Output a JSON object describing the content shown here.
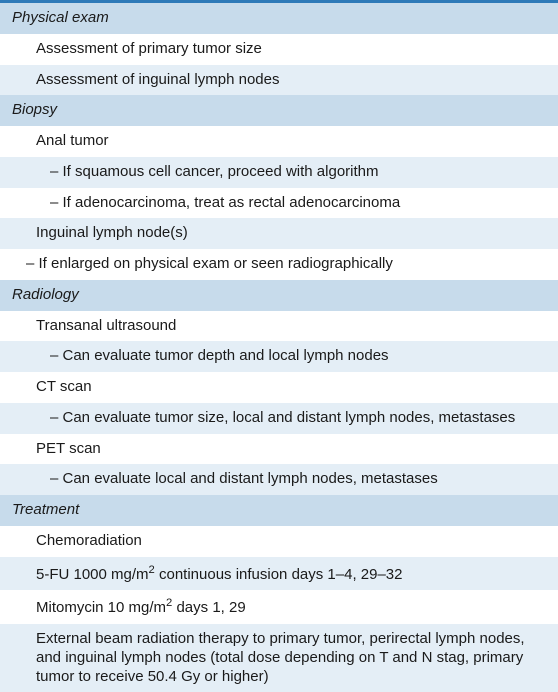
{
  "colors": {
    "header_bg": "#c7dbeb",
    "alt_bg": "#e4eef6",
    "white_bg": "#ffffff",
    "text": "#1a1a1a",
    "top_border": "#2e7ab8"
  },
  "fontsize": 15,
  "lineheight": 1.25,
  "sections": {
    "physical_exam": {
      "title": "Physical exam",
      "items": [
        "Assessment of primary tumor size",
        "Assessment of inguinal lymph nodes"
      ]
    },
    "biopsy": {
      "title": "Biopsy",
      "anal_tumor": "Anal tumor",
      "anal_sub": [
        "– If squamous cell cancer, proceed with algorithm",
        "– If adenocarcinoma, treat as rectal adenocarcinoma"
      ],
      "inguinal": "Inguinal lymph node(s)",
      "inguinal_sub": [
        "– If enlarged on physical exam or seen radiographically"
      ]
    },
    "radiology": {
      "title": "Radiology",
      "transanal": "Transanal ultrasound",
      "transanal_sub": "– Can evaluate tumor depth and local lymph nodes",
      "ct": "CT scan",
      "ct_sub": "– Can evaluate tumor size, local and distant lymph nodes, metastases",
      "pet": "PET scan",
      "pet_sub": "– Can evaluate local and distant lymph nodes, metastases"
    },
    "treatment": {
      "title": "Treatment",
      "items": [
        "Chemoradiation",
        "5-FU 1000 mg/m² continuous infusion days 1–4, 29–32",
        "Mitomycin 10 mg/m² days 1, 29",
        "External beam radiation therapy to primary tumor, perirectal lymph nodes, and inguinal lymph nodes (total dose depending on T and N stag, primary tumor to receive 50.4 Gy or higher)"
      ]
    }
  }
}
